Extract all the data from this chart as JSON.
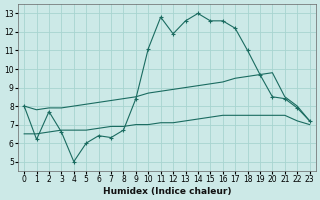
{
  "xlabel": "Humidex (Indice chaleur)",
  "xlim": [
    -0.5,
    23.5
  ],
  "ylim": [
    4.5,
    13.5
  ],
  "xticks": [
    0,
    1,
    2,
    3,
    4,
    5,
    6,
    7,
    8,
    9,
    10,
    11,
    12,
    13,
    14,
    15,
    16,
    17,
    18,
    19,
    20,
    21,
    22,
    23
  ],
  "yticks": [
    5,
    6,
    7,
    8,
    9,
    10,
    11,
    12,
    13
  ],
  "background_color": "#cce9e7",
  "grid_color": "#a8d4d0",
  "line_color": "#1a6b60",
  "line1_x": [
    0,
    1,
    2,
    3,
    4,
    5,
    6,
    7,
    8,
    9,
    10,
    11,
    12,
    13,
    14,
    15,
    16,
    17,
    18,
    19,
    20,
    21,
    22,
    23
  ],
  "line1_y": [
    8.0,
    6.2,
    7.7,
    6.6,
    5.0,
    6.0,
    6.4,
    6.3,
    6.7,
    8.4,
    11.1,
    12.8,
    11.9,
    12.6,
    13.0,
    12.6,
    12.6,
    12.2,
    11.0,
    9.7,
    8.5,
    8.4,
    7.9,
    7.2
  ],
  "line2_x": [
    0,
    1,
    2,
    3,
    4,
    5,
    6,
    7,
    8,
    9,
    10,
    11,
    12,
    13,
    14,
    15,
    16,
    17,
    18,
    19,
    20,
    21,
    22,
    23
  ],
  "line2_y": [
    8.0,
    7.8,
    7.9,
    7.9,
    8.0,
    8.1,
    8.2,
    8.3,
    8.4,
    8.5,
    8.7,
    8.8,
    8.9,
    9.0,
    9.1,
    9.2,
    9.3,
    9.5,
    9.6,
    9.7,
    9.8,
    8.5,
    8.0,
    7.2
  ],
  "line3_x": [
    0,
    1,
    2,
    3,
    4,
    5,
    6,
    7,
    8,
    9,
    10,
    11,
    12,
    13,
    14,
    15,
    16,
    17,
    18,
    19,
    20,
    21,
    22,
    23
  ],
  "line3_y": [
    6.5,
    6.5,
    6.6,
    6.7,
    6.7,
    6.7,
    6.8,
    6.9,
    6.9,
    7.0,
    7.0,
    7.1,
    7.1,
    7.2,
    7.3,
    7.4,
    7.5,
    7.5,
    7.5,
    7.5,
    7.5,
    7.5,
    7.2,
    7.0
  ]
}
